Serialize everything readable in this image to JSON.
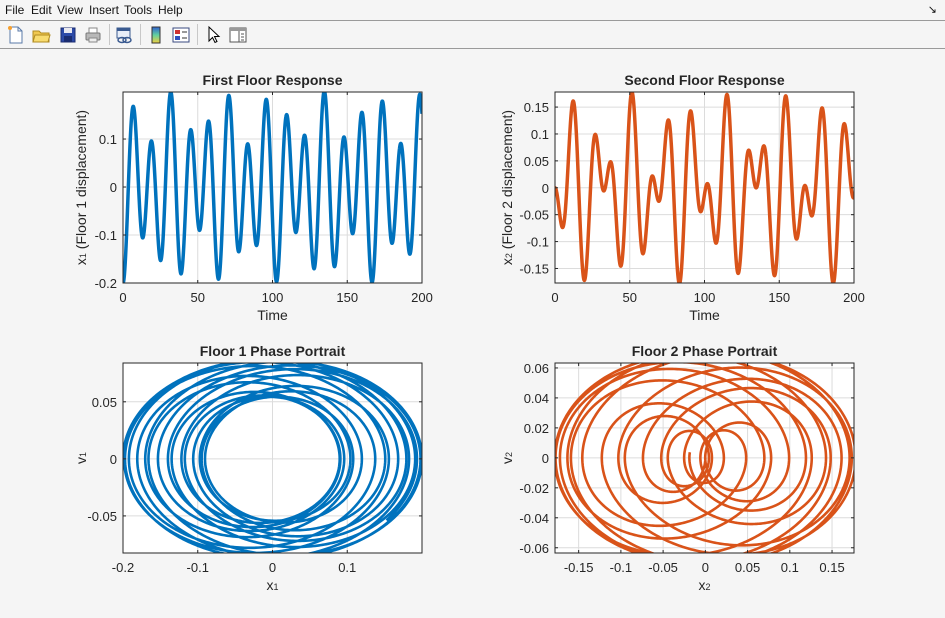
{
  "window": {
    "menu": [
      "File",
      "Edit",
      "View",
      "Insert",
      "Tools",
      "Help"
    ],
    "dock_icon": "dock-arrow-icon",
    "toolbar": [
      {
        "name": "new-figure",
        "icon": "new-file-icon"
      },
      {
        "name": "open-file",
        "icon": "folder-open-icon"
      },
      {
        "name": "save",
        "icon": "save-disk-icon"
      },
      {
        "name": "print",
        "icon": "printer-icon"
      },
      {
        "name": "link-plot",
        "icon": "link-plot-icon"
      },
      {
        "name": "insert-colorbar",
        "icon": "colorbar-icon"
      },
      {
        "name": "insert-legend",
        "icon": "legend-icon"
      },
      {
        "name": "edit-plot",
        "icon": "pointer-arrow-icon"
      },
      {
        "name": "property-inspector",
        "icon": "property-panel-icon"
      }
    ]
  },
  "colors": {
    "series1": "#0072bd",
    "series2": "#d95319",
    "grid": "#dcdcdc",
    "axis": "#262626"
  },
  "chart_data": [
    {
      "type": "line",
      "title": "First Floor Response",
      "xlabel": "Time",
      "ylabel_main": "x",
      "ylabel_sub": "1",
      "ylabel_rest": " (Floor 1 displacement)",
      "xlim": [
        0,
        200
      ],
      "ylim": [
        -0.2,
        0.198
      ],
      "xticks": [
        0,
        50,
        100,
        150,
        200
      ],
      "xtick_labels": [
        "0",
        "50",
        "100",
        "150",
        "200"
      ],
      "yticks": [
        -0.2,
        -0.1,
        0,
        0.1
      ],
      "ytick_labels": [
        "-0.2",
        "-0.1",
        "0",
        "0.1"
      ],
      "grid": true,
      "series": [
        {
          "name": "x1",
          "color": "#0072bd",
          "model": {
            "kind": "time",
            "a": -0.0553,
            "b": -0.1447,
            "w1": 0.303,
            "w2": 0.49,
            "t_end": 200
          }
        }
      ]
    },
    {
      "type": "line",
      "title": "Second Floor Response",
      "xlabel": "Time",
      "ylabel_main": "x",
      "ylabel_sub": "2",
      "ylabel_rest": " (Floor 2 displacement)",
      "xlim": [
        0,
        200
      ],
      "ylim": [
        -0.177,
        0.178
      ],
      "xticks": [
        0,
        50,
        100,
        150,
        200
      ],
      "xtick_labels": [
        "0",
        "50",
        "100",
        "150",
        "200"
      ],
      "yticks": [
        -0.15,
        -0.1,
        -0.05,
        0,
        0.05,
        0.1,
        0.15
      ],
      "ytick_labels": [
        "-0.15",
        "-0.1",
        "-0.05",
        "0",
        "0.05",
        "0.1",
        "0.15"
      ],
      "grid": true,
      "series": [
        {
          "name": "x2",
          "color": "#d95319",
          "model": {
            "kind": "time",
            "a": -0.0894,
            "b": 0.0894,
            "w1": 0.303,
            "w2": 0.49,
            "t_end": 200
          }
        }
      ]
    },
    {
      "type": "line",
      "title": "Floor 1 Phase Portrait",
      "xlabel_main": "x",
      "xlabel_sub": "1",
      "ylabel_main": "v",
      "ylabel_sub": "1",
      "xlim": [
        -0.2,
        0.2
      ],
      "ylim": [
        -0.0825,
        0.084
      ],
      "xticks": [
        -0.2,
        -0.1,
        0,
        0.1
      ],
      "xtick_labels": [
        "-0.2",
        "-0.1",
        "0",
        "0.1"
      ],
      "yticks": [
        -0.05,
        0,
        0.05
      ],
      "ytick_labels": [
        "-0.05",
        "0",
        "0.05"
      ],
      "grid": true,
      "series": [
        {
          "name": "v1 vs x1",
          "color": "#0072bd",
          "model": {
            "kind": "phase",
            "a": -0.0553,
            "b": -0.1447,
            "w1": 0.303,
            "w2": 0.49,
            "t_end": 200
          }
        }
      ]
    },
    {
      "type": "line",
      "title": "Floor 2 Phase Portrait",
      "xlabel_main": "x",
      "xlabel_sub": "2",
      "ylabel_main": "v",
      "ylabel_sub": "2",
      "xlim": [
        -0.178,
        0.176
      ],
      "ylim": [
        -0.0635,
        0.0633
      ],
      "xticks": [
        -0.15,
        -0.1,
        -0.05,
        0,
        0.05,
        0.1,
        0.15
      ],
      "xtick_labels": [
        "-0.15",
        "-0.1",
        "-0.05",
        "0",
        "0.05",
        "0.1",
        "0.15"
      ],
      "yticks": [
        -0.06,
        -0.04,
        -0.02,
        0,
        0.02,
        0.04,
        0.06
      ],
      "ytick_labels": [
        "-0.06",
        "-0.04",
        "-0.02",
        "0",
        "0.02",
        "0.04",
        "0.06"
      ],
      "grid": true,
      "series": [
        {
          "name": "v2 vs x2",
          "color": "#d95319",
          "model": {
            "kind": "phase",
            "a": -0.0894,
            "b": 0.0894,
            "w1": 0.303,
            "w2": 0.49,
            "t_end": 200
          }
        }
      ]
    }
  ]
}
